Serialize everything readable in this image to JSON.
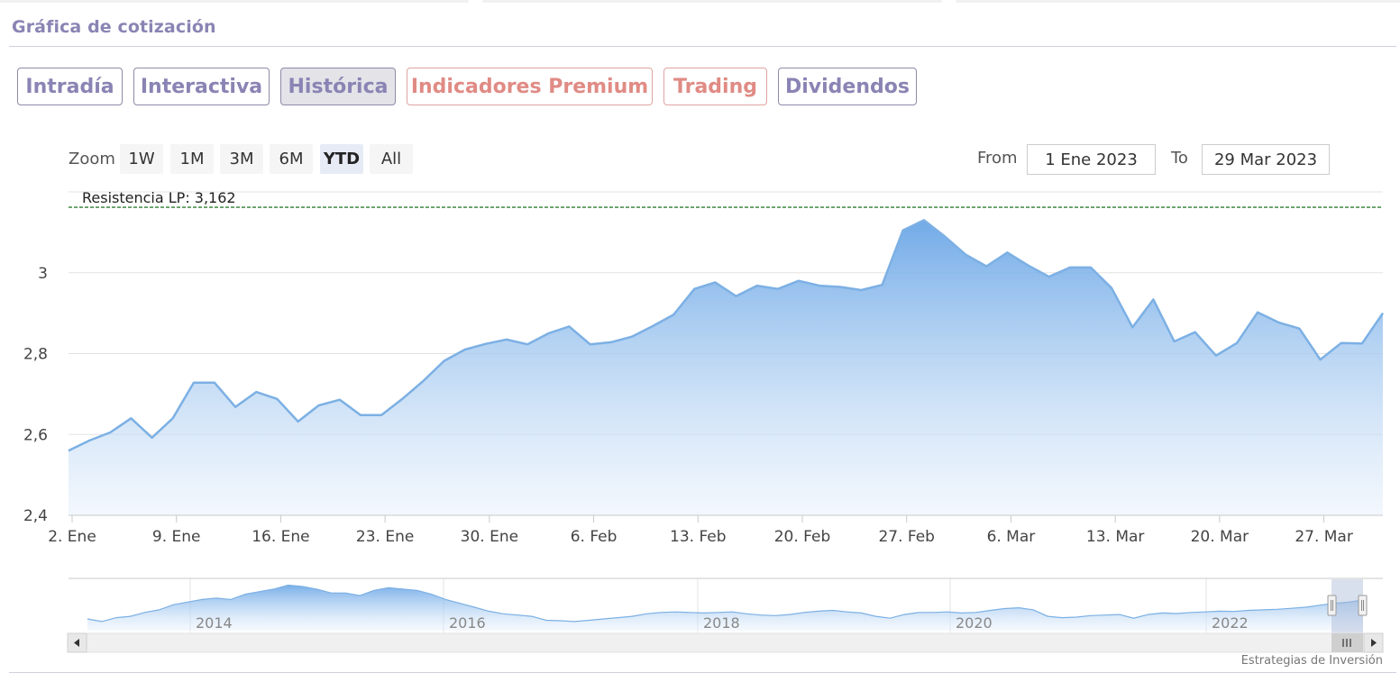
{
  "section": {
    "title": "Gráfica de cotización"
  },
  "tabs": [
    {
      "label": "Intradía",
      "active": false,
      "premium": false
    },
    {
      "label": "Interactiva",
      "active": false,
      "premium": false
    },
    {
      "label": "Histórica",
      "active": true,
      "premium": false
    },
    {
      "label": "Indicadores Premium",
      "active": false,
      "premium": true
    },
    {
      "label": "Trading",
      "active": false,
      "premium": true
    },
    {
      "label": "Dividendos",
      "active": false,
      "premium": false
    }
  ],
  "zoom": {
    "label": "Zoom",
    "buttons": [
      "1W",
      "1M",
      "3M",
      "6M",
      "YTD",
      "All"
    ],
    "selected": "YTD"
  },
  "range": {
    "from_label": "From",
    "from_value": "1 Ene 2023",
    "to_label": "To",
    "to_value": "29 Mar 2023"
  },
  "credits": "Estrategias de Inversión",
  "colors": {
    "series": "#7cb0e4",
    "resistance": "#2e7d32",
    "accent": "#8a84b4",
    "premium": "#e08b85"
  },
  "chart_data": {
    "type": "area",
    "series": [
      {
        "values": [
          2.56,
          2.585,
          2.605,
          2.64,
          2.592,
          2.64,
          2.728,
          2.728,
          2.668,
          2.705,
          2.688,
          2.632,
          2.672,
          2.686,
          2.648,
          2.648,
          2.688,
          2.732,
          2.782,
          2.81,
          2.824,
          2.835,
          2.823,
          2.85,
          2.867,
          2.823,
          2.828,
          2.842,
          2.868,
          2.896,
          2.96,
          2.976,
          2.942,
          2.968,
          2.96,
          2.98,
          2.968,
          2.965,
          2.957,
          2.97,
          3.105,
          3.13,
          3.09,
          3.045,
          3.016,
          3.05,
          3.018,
          2.99,
          3.013,
          3.013,
          2.962,
          2.865,
          2.934,
          2.83,
          2.853,
          2.795,
          2.826,
          2.902,
          2.877,
          2.862,
          2.785,
          2.826,
          2.825,
          2.9
        ]
      }
    ],
    "x_labels": [
      "2. Ene",
      "9. Ene",
      "16. Ene",
      "23. Ene",
      "30. Ene",
      "6. Feb",
      "13. Feb",
      "20. Feb",
      "27. Feb",
      "6. Mar",
      "13. Mar",
      "20. Mar",
      "27. Mar"
    ],
    "y_ticks": [
      2.4,
      2.6,
      2.8,
      3
    ],
    "y_tick_labels": [
      "2,4",
      "2,6",
      "2,8",
      "3"
    ],
    "ylim": [
      2.4,
      3.2
    ],
    "grid": true,
    "resistance": {
      "label": "Resistencia LP: 3,162",
      "value": 3.162
    },
    "navigator": {
      "year_labels": [
        "2014",
        "2016",
        "2018",
        "2020",
        "2022"
      ],
      "values": [
        0.45,
        0.35,
        0.5,
        0.55,
        0.7,
        0.8,
        1.0,
        1.1,
        1.2,
        1.25,
        1.2,
        1.4,
        1.5,
        1.6,
        1.75,
        1.7,
        1.6,
        1.45,
        1.45,
        1.35,
        1.55,
        1.65,
        1.6,
        1.55,
        1.4,
        1.2,
        1.05,
        0.9,
        0.75,
        0.65,
        0.6,
        0.55,
        0.4,
        0.38,
        0.35,
        0.4,
        0.45,
        0.5,
        0.55,
        0.65,
        0.7,
        0.72,
        0.7,
        0.68,
        0.7,
        0.72,
        0.65,
        0.6,
        0.58,
        0.62,
        0.7,
        0.75,
        0.78,
        0.72,
        0.68,
        0.55,
        0.48,
        0.62,
        0.7,
        0.7,
        0.72,
        0.68,
        0.7,
        0.78,
        0.85,
        0.88,
        0.8,
        0.55,
        0.5,
        0.52,
        0.58,
        0.6,
        0.62,
        0.48,
        0.62,
        0.68,
        0.66,
        0.7,
        0.72,
        0.75,
        0.74,
        0.78,
        0.8,
        0.82,
        0.86,
        0.9,
        0.98,
        1.05,
        1.1,
        1.18
      ]
    }
  }
}
